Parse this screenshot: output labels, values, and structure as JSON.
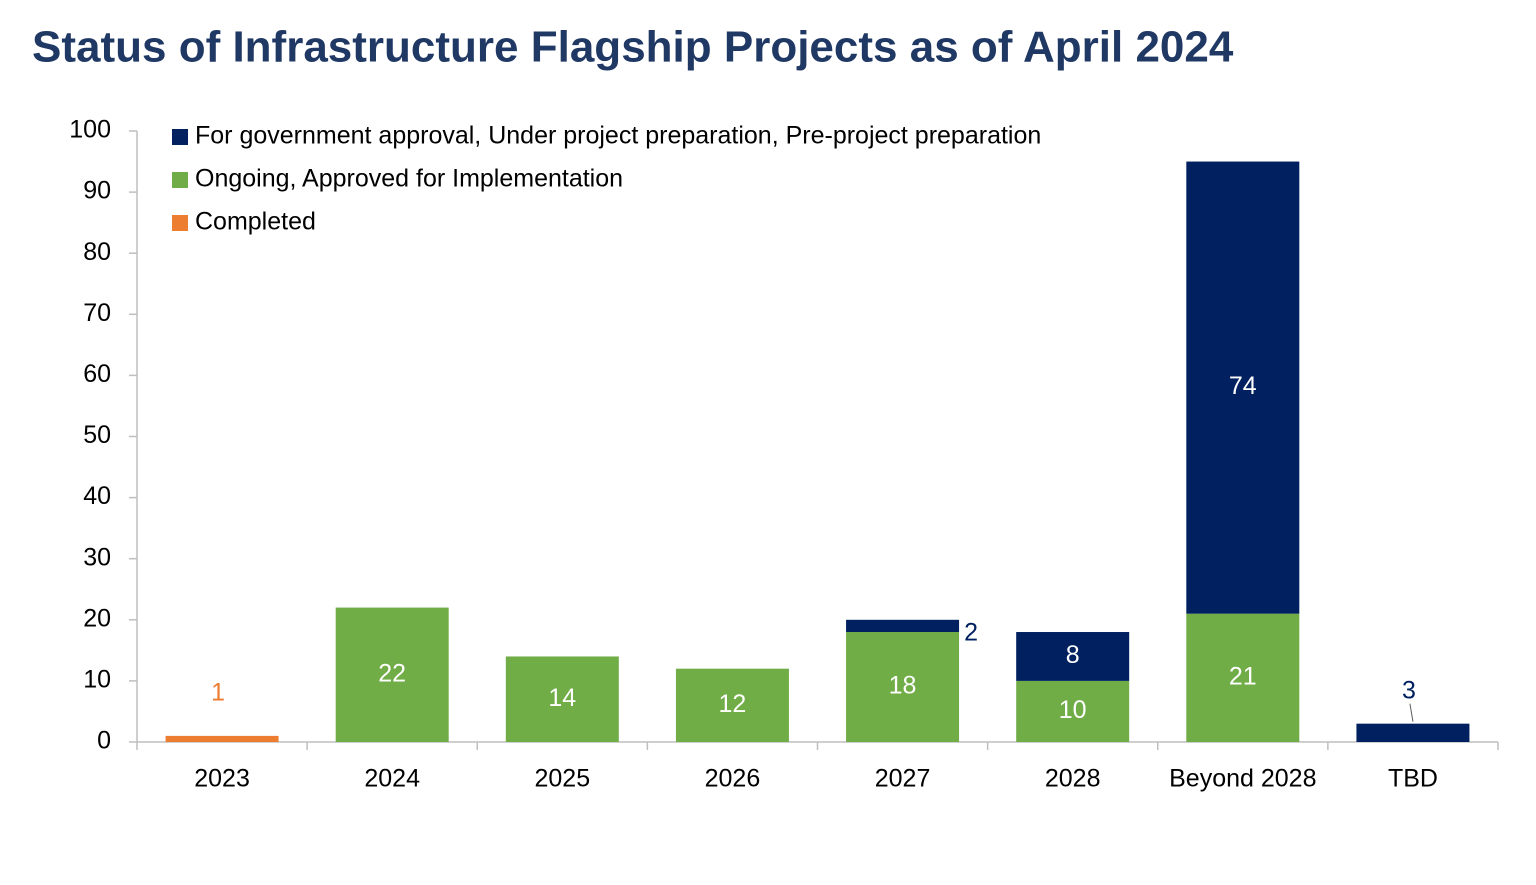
{
  "chart_data": {
    "type": "stacked-bar",
    "title": "Status of Infrastructure Flagship Projects as of April 2024",
    "categories": [
      "2023",
      "2024",
      "2025",
      "2026",
      "2027",
      "2028",
      "Beyond 2028",
      "TBD"
    ],
    "series": [
      {
        "name": "For government approval, Under project preparation, Pre-project preparation",
        "color": "#002060",
        "values": [
          null,
          null,
          null,
          null,
          2,
          8,
          74,
          3
        ]
      },
      {
        "name": "Ongoing, Approved for Implementation",
        "color": "#70ad47",
        "values": [
          null,
          22,
          14,
          12,
          18,
          10,
          21,
          null
        ]
      },
      {
        "name": "Completed",
        "color": "#ed7d31",
        "values": [
          1,
          null,
          null,
          null,
          null,
          null,
          null,
          null
        ]
      }
    ],
    "ylim": [
      0,
      100
    ],
    "yticks": [
      0,
      10,
      20,
      30,
      40,
      50,
      60,
      70,
      80,
      90,
      100
    ],
    "grid": false,
    "legend": "top-left"
  }
}
